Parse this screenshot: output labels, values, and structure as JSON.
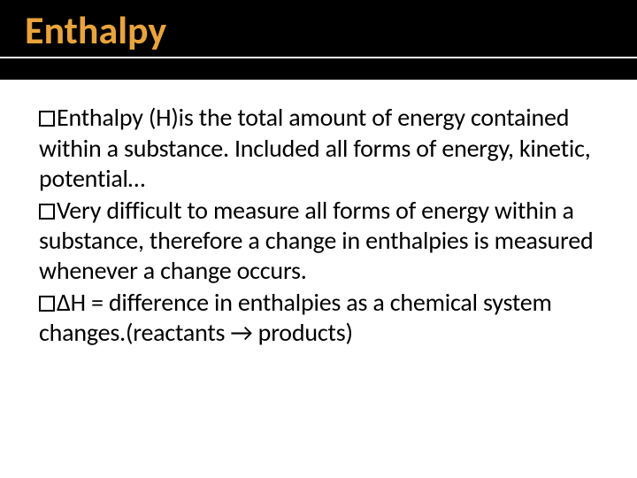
{
  "slide": {
    "title": "Enthalpy",
    "title_color": "#e8a33d",
    "title_bg": "#000000",
    "title_fontsize": 44,
    "body_fontsize": 28,
    "body_color": "#000000",
    "background": "#ffffff",
    "bullets": [
      "Enthalpy (H)is the total amount of energy contained within a substance. Included all forms of energy, kinetic, potential…",
      "Very difficult to measure all forms of energy within a substance, therefore a change in enthalpies is measured whenever a change occurs.",
      "ΔH = difference in enthalpies as a chemical system changes.(reactants → products)"
    ]
  }
}
